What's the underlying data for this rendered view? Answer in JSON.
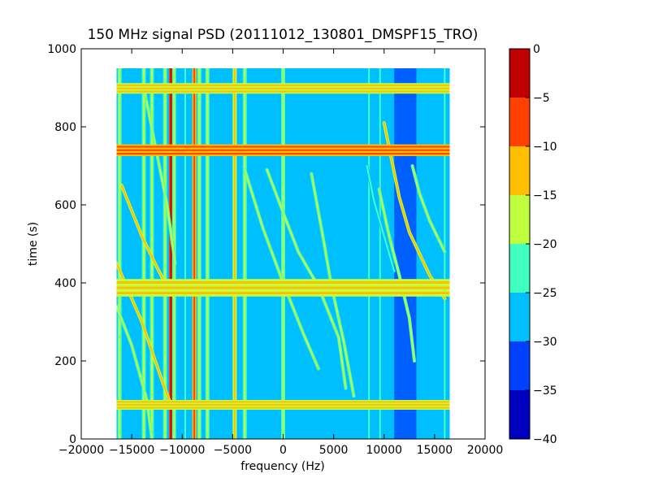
{
  "chart_data": {
    "type": "heatmap",
    "title": "150 MHz signal PSD (20111012_130801_DMSPF15_TRO)",
    "xlabel": "frequency (Hz)",
    "ylabel": "time (s)",
    "xlim": [
      -20000,
      20000
    ],
    "ylim": [
      0,
      1000
    ],
    "xticks": [
      -20000,
      -15000,
      -10000,
      -5000,
      0,
      5000,
      10000,
      15000,
      20000
    ],
    "xtick_labels": [
      "−20000",
      "−15000",
      "−10000",
      "−5000",
      "0",
      "5000",
      "10000",
      "15000",
      "20000"
    ],
    "yticks": [
      0,
      200,
      400,
      600,
      800,
      1000
    ],
    "ytick_labels": [
      "0",
      "200",
      "400",
      "600",
      "800",
      "1000"
    ],
    "data_extent": {
      "x": [
        -16500,
        16500
      ],
      "y": [
        0,
        950
      ]
    },
    "background_level": -27.5,
    "colorbar": {
      "range": [
        -40,
        0
      ],
      "levels": [
        -40,
        -35,
        -30,
        -25,
        -20,
        -15,
        -10,
        -5,
        0
      ],
      "tick_labels": [
        "−40",
        "−35",
        "−30",
        "−25",
        "−20",
        "−15",
        "−10",
        "−5",
        "0"
      ],
      "colors": [
        "#0000bf",
        "#0040ff",
        "#00bfff",
        "#40ffbf",
        "#bfff40",
        "#ffbf00",
        "#ff4000",
        "#bf0000"
      ]
    },
    "horizontal_bands": [
      {
        "time": [
          725,
          755
        ],
        "level": -7.5
      },
      {
        "time": [
          365,
          410
        ],
        "level": -12.5
      },
      {
        "time": [
          885,
          912
        ],
        "level": -12.5
      },
      {
        "time": [
          75,
          100
        ],
        "level": -12.5
      }
    ],
    "vertical_lines": [
      {
        "freq": -16200,
        "level": -17.5
      },
      {
        "freq": -13800,
        "level": -17.5
      },
      {
        "freq": -13000,
        "level": -17.5
      },
      {
        "freq": -11700,
        "level": -17.5
      },
      {
        "freq": -11100,
        "level": -2.5
      },
      {
        "freq": -10800,
        "level": -17.5
      },
      {
        "freq": -9700,
        "level": -22.5
      },
      {
        "freq": -8800,
        "level": -7.5
      },
      {
        "freq": -8300,
        "level": -17.5
      },
      {
        "freq": -7500,
        "level": -17.5
      },
      {
        "freq": -4800,
        "level": -12.5
      },
      {
        "freq": -3800,
        "level": -17.5
      },
      {
        "freq": 0,
        "level": -17.5
      },
      {
        "freq": 8500,
        "level": -22.5
      },
      {
        "freq": 9600,
        "level": -22.5
      },
      {
        "freq": 16000,
        "level": -22.5
      }
    ],
    "noise_band": {
      "freq": [
        11000,
        13200
      ],
      "level": -32.5
    },
    "traces": [
      {
        "points": [
          [
            -16500,
            450
          ],
          [
            -14000,
            300
          ],
          [
            -12000,
            150
          ],
          [
            -11000,
            80
          ]
        ],
        "level": -12.5
      },
      {
        "points": [
          [
            -16500,
            340
          ],
          [
            -15000,
            240
          ],
          [
            -13500,
            100
          ],
          [
            -13000,
            0
          ]
        ],
        "level": -17.5
      },
      {
        "points": [
          [
            -16000,
            650
          ],
          [
            -14000,
            520
          ],
          [
            -12500,
            440
          ],
          [
            -11500,
            390
          ]
        ],
        "level": -12.5
      },
      {
        "points": [
          [
            -13800,
            900
          ],
          [
            -12500,
            730
          ],
          [
            -11500,
            600
          ],
          [
            -10700,
            450
          ]
        ],
        "level": -17.5
      },
      {
        "points": [
          [
            -3800,
            690
          ],
          [
            -2000,
            540
          ],
          [
            0,
            400
          ],
          [
            2000,
            270
          ],
          [
            3500,
            180
          ]
        ],
        "level": -17.5
      },
      {
        "points": [
          [
            -1600,
            690
          ],
          [
            0,
            580
          ],
          [
            1500,
            480
          ],
          [
            3500,
            390
          ],
          [
            5500,
            260
          ],
          [
            6200,
            130
          ]
        ],
        "level": -17.5
      },
      {
        "points": [
          [
            2800,
            680
          ],
          [
            4000,
            510
          ],
          [
            4800,
            390
          ],
          [
            6000,
            250
          ],
          [
            7000,
            110
          ]
        ],
        "level": -17.5
      },
      {
        "points": [
          [
            9500,
            640
          ],
          [
            10500,
            520
          ],
          [
            11500,
            420
          ],
          [
            12500,
            310
          ],
          [
            13000,
            200
          ]
        ],
        "level": -17.5
      },
      {
        "points": [
          [
            10000,
            810
          ],
          [
            11500,
            620
          ],
          [
            12500,
            530
          ],
          [
            14500,
            420
          ],
          [
            16000,
            360
          ]
        ],
        "level": -12.5
      },
      {
        "points": [
          [
            12800,
            700
          ],
          [
            13500,
            630
          ],
          [
            14500,
            560
          ],
          [
            16000,
            480
          ]
        ],
        "level": -17.5
      },
      {
        "points": [
          [
            8300,
            700
          ],
          [
            9000,
            610
          ],
          [
            10000,
            520
          ],
          [
            11000,
            430
          ]
        ],
        "level": -22.5
      }
    ]
  }
}
